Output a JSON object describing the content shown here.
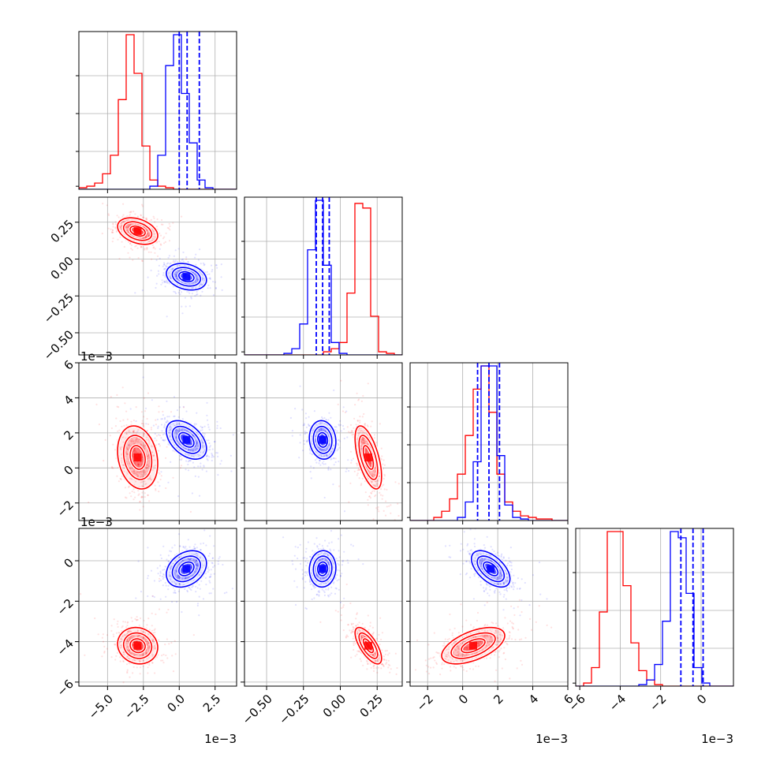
{
  "chart_data": {
    "type": "corner",
    "params": [
      {
        "range": [
          -7.0,
          4.0
        ],
        "ticks": [
          -5.0,
          -2.5,
          0.0,
          2.5
        ],
        "ticklabels": [
          "−5.0",
          "−2.5",
          "0.0",
          "2.5"
        ],
        "offset": "1e−3",
        "offset_visible": true
      },
      {
        "range": [
          -0.65,
          0.42
        ],
        "ticks": [
          -0.5,
          -0.25,
          0.0,
          0.25
        ],
        "ticklabels": [
          "−0.50",
          "−0.25",
          "0.00",
          "0.25"
        ],
        "offset": "",
        "offset_visible": false
      },
      {
        "range": [
          -3.0,
          6.0
        ],
        "ticks": [
          -2,
          0,
          2,
          4,
          6
        ],
        "ticklabels": [
          "−2",
          "0",
          "2",
          "4",
          "6"
        ],
        "offset": "1e−3",
        "offset_visible": true
      },
      {
        "range": [
          -6.2,
          1.6
        ],
        "ticks": [
          -6,
          -4,
          -2,
          0
        ],
        "ticklabels": [
          "−6",
          "−4",
          "−2",
          "0"
        ],
        "offset": "1e−3",
        "offset_visible": true
      }
    ],
    "series": [
      {
        "color": "#ff0000",
        "mean": [
          -2.9,
          0.19,
          0.6,
          -4.2
        ],
        "std": [
          0.7,
          0.045,
          0.9,
          0.45
        ],
        "hist_heights": [
          [
            1,
            2,
            4,
            10,
            22,
            58,
            100,
            75,
            28,
            6,
            2,
            1,
            0,
            0,
            0,
            0,
            0,
            0,
            0,
            0
          ],
          [
            0,
            0,
            0,
            0,
            0,
            0,
            0,
            0,
            0,
            0,
            2,
            4,
            8,
            40,
            98,
            95,
            25,
            2,
            1,
            0
          ],
          [
            0,
            0,
            0,
            2,
            6,
            14,
            30,
            55,
            85,
            100,
            70,
            30,
            12,
            6,
            3,
            2,
            1,
            1,
            0,
            0
          ],
          [
            0,
            2,
            12,
            48,
            100,
            100,
            65,
            28,
            10,
            4,
            1,
            0,
            0,
            0,
            0,
            0,
            0,
            0,
            0,
            0
          ]
        ]
      },
      {
        "color": "#0000ff",
        "mean": [
          0.5,
          -0.12,
          1.6,
          -0.4
        ],
        "std": [
          0.7,
          0.045,
          0.55,
          0.45
        ],
        "hist_heights": [
          [
            0,
            0,
            0,
            0,
            0,
            0,
            0,
            0,
            0,
            2,
            22,
            80,
            100,
            62,
            30,
            6,
            1,
            0,
            0,
            0
          ],
          [
            0,
            0,
            0,
            0,
            0,
            1,
            4,
            20,
            68,
            100,
            58,
            8,
            1,
            0,
            0,
            0,
            0,
            0,
            0,
            0
          ],
          [
            0,
            0,
            0,
            0,
            0,
            0,
            2,
            12,
            38,
            100,
            100,
            42,
            10,
            2,
            1,
            0,
            0,
            0,
            0,
            0
          ],
          [
            0,
            0,
            0,
            0,
            0,
            0,
            0,
            0,
            1,
            4,
            14,
            42,
            100,
            96,
            60,
            12,
            2,
            0,
            0,
            0
          ]
        ]
      },
      {
        "color": "#0000ff",
        "note": ""
      }
    ],
    "quantiles": [
      [
        0.0,
        0.55,
        1.4
      ],
      [
        -0.163,
        -0.12,
        -0.075
      ],
      [
        0.85,
        1.5,
        2.1
      ],
      [
        -1.0,
        -0.4,
        0.1
      ]
    ],
    "correlations": [
      {
        "i": 1,
        "j": 0,
        "red": -0.35,
        "blue": -0.25
      },
      {
        "i": 2,
        "j": 0,
        "red": -0.2,
        "blue": -0.45
      },
      {
        "i": 2,
        "j": 1,
        "red": -0.6,
        "blue": -0.1
      },
      {
        "i": 3,
        "j": 0,
        "red": -0.1,
        "blue": 0.3
      },
      {
        "i": 3,
        "j": 1,
        "red": -0.7,
        "blue": 0.05
      },
      {
        "i": 3,
        "j": 2,
        "red": 0.55,
        "blue": -0.55
      }
    ]
  }
}
